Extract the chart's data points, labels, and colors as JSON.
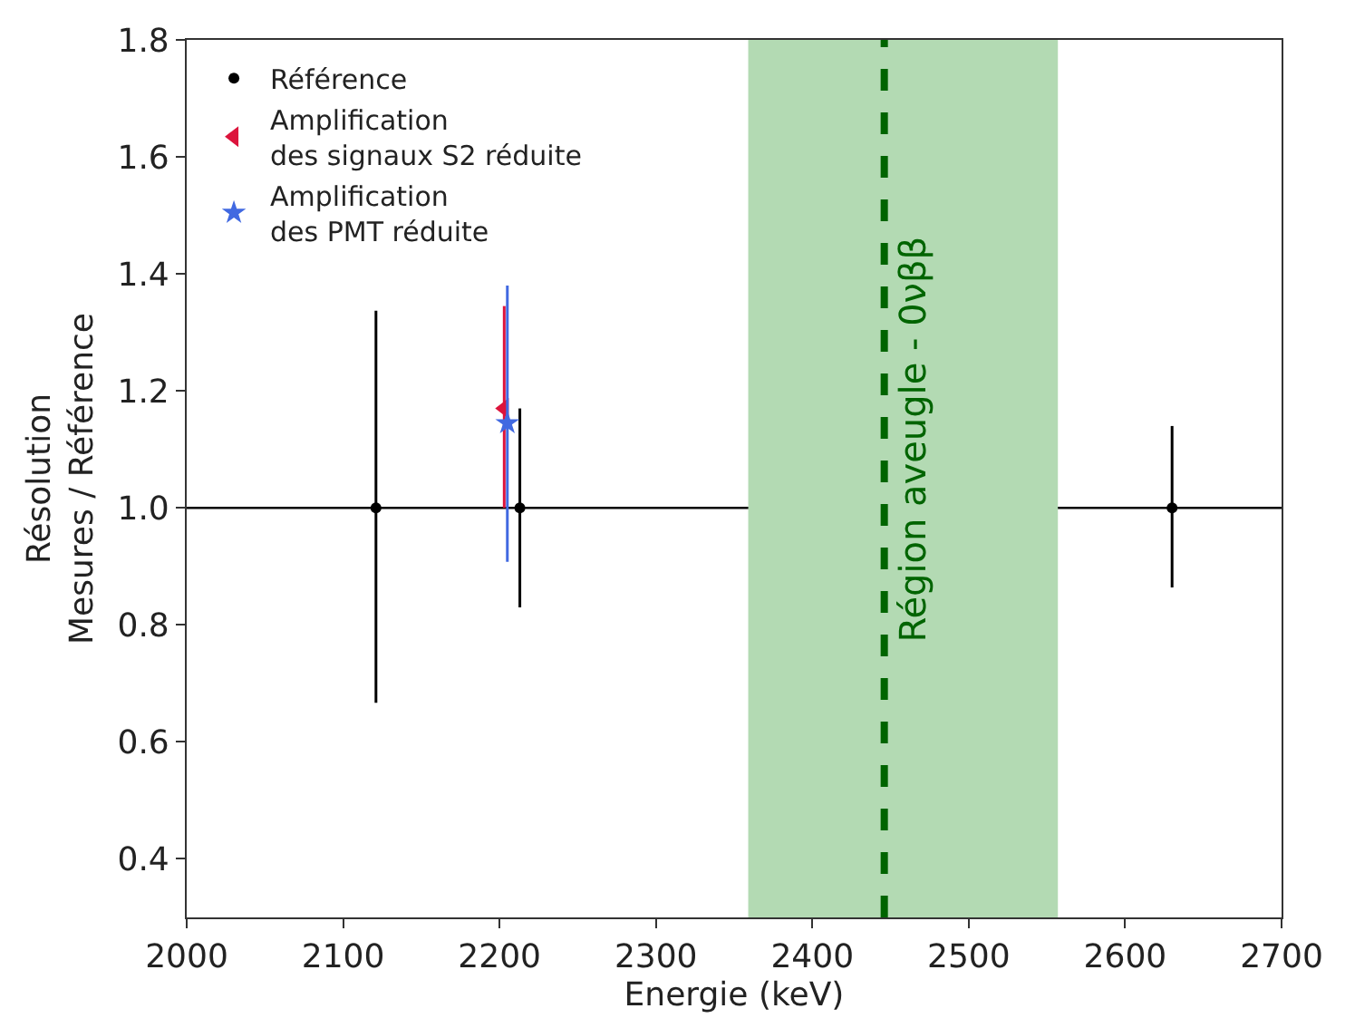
{
  "chart_data": {
    "type": "scatter",
    "xlabel": "Energie (keV)",
    "ylabel": "Résolution\nMesures / Référence",
    "xlim": [
      2000,
      2700
    ],
    "xticks": [
      2000,
      2100,
      2200,
      2300,
      2400,
      2500,
      2600,
      2700
    ],
    "ylim": [
      0.3,
      1.8
    ],
    "yticks": [
      0.4,
      0.6,
      0.8,
      {
        "value": 1,
        "label": "1.0"
      },
      1.2,
      1.4,
      1.6,
      1.8
    ],
    "grid": false,
    "legend": "top left",
    "series": [
      {
        "name": "Référence",
        "color": "#000000",
        "marker": "circle",
        "x": [
          2121,
          2213,
          2630
        ],
        "values": [
          1.0,
          1.0,
          1.0
        ],
        "errors": [
          [
            0.667,
            1.337
          ],
          [
            0.83,
            1.17
          ],
          [
            0.864,
            1.14
          ]
        ]
      },
      {
        "name": "Amplification\ndes signaux S2 réduite",
        "color": "#dc143c",
        "marker": "triangle",
        "x": [
          2203
        ],
        "values": [
          1.17
        ],
        "errors": [
          [
            1.0,
            1.345
          ]
        ]
      },
      {
        "name": "Amplification\ndes PMT réduite",
        "color": "#4169e1",
        "marker": "star",
        "x": [
          2205
        ],
        "values": [
          1.145
        ],
        "errors": [
          [
            0.908,
            1.38
          ]
        ]
      }
    ],
    "ref_lines": [
      {
        "axis": "y",
        "value": 1.0,
        "color": "#000000",
        "line_style": "solid"
      },
      {
        "axis": "x",
        "value": 2446,
        "label": "Région aveugle - 0νββ",
        "color": "#006400",
        "line_style": "dashed"
      }
    ],
    "bands": [
      {
        "axis": "x",
        "from": 2359,
        "to": 2557,
        "color": "#b3dab3"
      }
    ]
  }
}
